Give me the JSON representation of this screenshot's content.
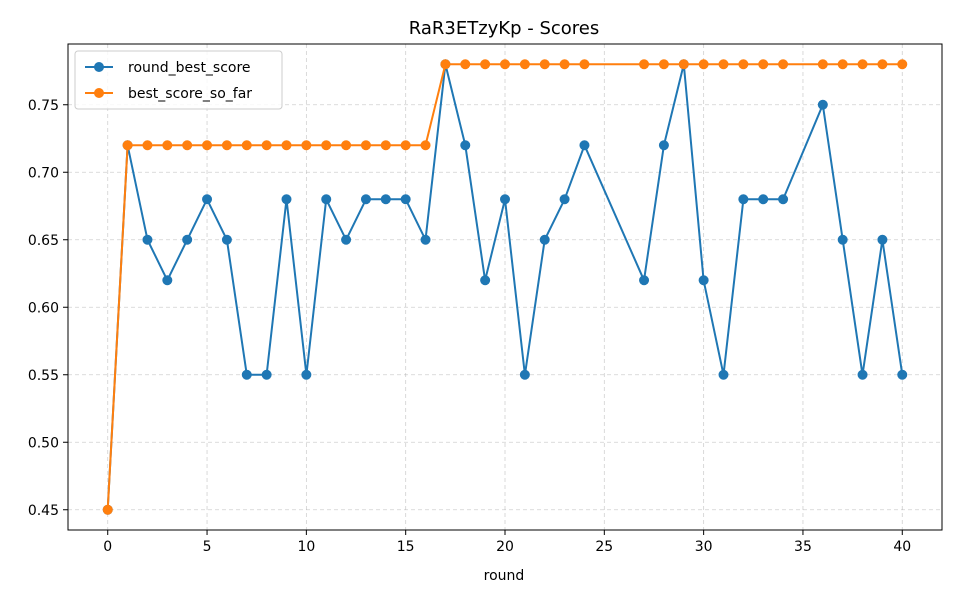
{
  "chart_data": {
    "type": "line",
    "title": "RaR3ETzyKp - Scores",
    "xlabel": "round",
    "ylabel": "",
    "xlim": [
      -2,
      42
    ],
    "ylim": [
      0.435,
      0.795
    ],
    "xticks": [
      0,
      5,
      10,
      15,
      20,
      25,
      30,
      35,
      40
    ],
    "yticks": [
      0.45,
      0.5,
      0.55,
      0.6,
      0.65,
      0.7,
      0.75
    ],
    "grid": true,
    "legend_position": "top-left",
    "series": [
      {
        "name": "round_best_score",
        "color": "#1f77b4",
        "x": [
          0,
          1,
          2,
          3,
          4,
          5,
          6,
          7,
          8,
          9,
          10,
          11,
          12,
          13,
          14,
          15,
          16,
          17,
          18,
          19,
          20,
          21,
          22,
          23,
          24,
          27,
          28,
          29,
          30,
          31,
          32,
          33,
          34,
          36,
          37,
          38,
          39,
          40
        ],
        "y": [
          0.45,
          0.72,
          0.65,
          0.62,
          0.65,
          0.68,
          0.65,
          0.55,
          0.55,
          0.68,
          0.55,
          0.68,
          0.65,
          0.68,
          0.68,
          0.68,
          0.65,
          0.78,
          0.72,
          0.62,
          0.68,
          0.55,
          0.65,
          0.68,
          0.72,
          0.62,
          0.72,
          0.78,
          0.62,
          0.55,
          0.68,
          0.68,
          0.68,
          0.75,
          0.65,
          0.55,
          0.65,
          0.55
        ]
      },
      {
        "name": "best_score_so_far",
        "color": "#ff7f0e",
        "x": [
          0,
          1,
          2,
          3,
          4,
          5,
          6,
          7,
          8,
          9,
          10,
          11,
          12,
          13,
          14,
          15,
          16,
          17,
          18,
          19,
          20,
          21,
          22,
          23,
          24,
          27,
          28,
          29,
          30,
          31,
          32,
          33,
          34,
          36,
          37,
          38,
          39,
          40
        ],
        "y": [
          0.45,
          0.72,
          0.72,
          0.72,
          0.72,
          0.72,
          0.72,
          0.72,
          0.72,
          0.72,
          0.72,
          0.72,
          0.72,
          0.72,
          0.72,
          0.72,
          0.72,
          0.78,
          0.78,
          0.78,
          0.78,
          0.78,
          0.78,
          0.78,
          0.78,
          0.78,
          0.78,
          0.78,
          0.78,
          0.78,
          0.78,
          0.78,
          0.78,
          0.78,
          0.78,
          0.78,
          0.78,
          0.78
        ]
      }
    ]
  }
}
